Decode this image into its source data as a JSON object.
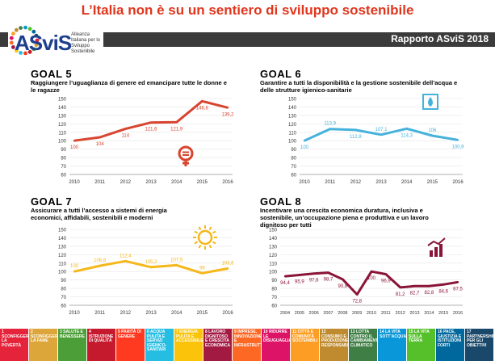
{
  "header": {
    "title": "L’Italia non è su un sentiero di sviluppo sostenibile",
    "logo_text": "ASviS",
    "logo_sub": "Alleanza Italiana per lo Sviluppo Sostenibile",
    "report_label": "Rapporto ASviS 2018"
  },
  "colors": {
    "goal5": "#d8442f",
    "goal6": "#45b2dc",
    "goal7": "#f5b71a",
    "goal8": "#8a1538"
  },
  "chart_data": [
    {
      "type": "line",
      "title": "GOAL 5",
      "subtitle": "Raggiungere l’uguaglianza di genere ed emancipare tutte le donne e le ragazze",
      "icon": "gender-equality-icon",
      "categories": [
        "2010",
        "2011",
        "2012",
        "2013",
        "2014",
        "2015",
        "2016"
      ],
      "values": [
        100,
        104,
        114,
        121.6,
        121.9,
        146.8,
        139.2
      ],
      "value_labels": [
        "100",
        "104",
        "114",
        "121,6",
        "121,9",
        "146,8",
        "139,2"
      ],
      "ylim": [
        60,
        150
      ],
      "yticks": [
        60,
        70,
        80,
        90,
        100,
        110,
        120,
        130,
        140,
        150
      ]
    },
    {
      "type": "line",
      "title": "GOAL 6",
      "subtitle": "Garantire a tutti la disponibilità e la gestione sostenibile dell’acqua e delle strutture igienico-sanitarie",
      "icon": "water-drop-icon",
      "categories": [
        "2010",
        "2011",
        "2012",
        "2013",
        "2014",
        "2015",
        "2016"
      ],
      "values": [
        100,
        113.9,
        112.8,
        107.1,
        114.3,
        106,
        100.9
      ],
      "value_labels": [
        "100",
        "113,9",
        "112,8",
        "107,1",
        "114,3",
        "106",
        "100,9"
      ],
      "ylim": [
        60,
        150
      ],
      "yticks": [
        60,
        70,
        80,
        90,
        100,
        110,
        120,
        130,
        140,
        150
      ]
    },
    {
      "type": "line",
      "title": "GOAL 7",
      "subtitle": "Assicurare a tutti l’accesso a sistemi di energia economici, affidabili, sostenibili e moderni",
      "icon": "sun-icon",
      "categories": [
        "2010",
        "2011",
        "2012",
        "2013",
        "2014",
        "2015",
        "2016"
      ],
      "values": [
        100,
        106.8,
        112.4,
        105.2,
        107.5,
        98,
        103.6
      ],
      "value_labels": [
        "100",
        "106,8",
        "112,4",
        "105,2",
        "107,5",
        "98",
        "103,6"
      ],
      "ylim": [
        60,
        150
      ],
      "yticks": [
        60,
        70,
        80,
        90,
        100,
        110,
        120,
        130,
        140,
        150
      ]
    },
    {
      "type": "line",
      "title": "GOAL 8",
      "subtitle": "Incentivare una crescita economica duratura, inclusiva e sostenibile, un’occupazione piena e produttiva e un lavoro dignitoso per tutti",
      "icon": "growth-chart-icon",
      "categories": [
        "2004",
        "2005",
        "2006",
        "2007",
        "2008",
        "2009",
        "2010",
        "2011",
        "2012",
        "2013",
        "2014",
        "2015",
        "2016"
      ],
      "values": [
        94.4,
        95.9,
        97.6,
        98.7,
        90.8,
        72.8,
        100,
        96.9,
        81.2,
        82.7,
        82.8,
        84.6,
        87.5
      ],
      "value_labels": [
        "94,4",
        "95,9",
        "97,6",
        "98,7",
        "90,8",
        "72,8",
        "100",
        "96,9",
        "81,2",
        "82,7",
        "82,8",
        "84,6",
        "87,5"
      ],
      "ylim": [
        60,
        150
      ],
      "yticks": [
        60,
        70,
        80,
        90,
        100,
        110,
        120,
        130,
        140,
        150
      ]
    }
  ],
  "sdg_bar": [
    {
      "label": "SCONFIGGERE LA POVERTÀ",
      "color": "#e5243b"
    },
    {
      "label": "SCONFIGGERE LA FAME",
      "color": "#dda63a"
    },
    {
      "label": "SALUTE E BENESSERE",
      "color": "#4c9f38"
    },
    {
      "label": "ISTRUZIONE DI QUALITÀ",
      "color": "#c5192d"
    },
    {
      "label": "PARITÀ DI GENERE",
      "color": "#ff3a21"
    },
    {
      "label": "ACQUA PULITA E SERVIZI IGIENICO-SANITARI",
      "color": "#26bde2"
    },
    {
      "label": "ENERGIA PULITA E ACCESSIBILE",
      "color": "#fcc30b"
    },
    {
      "label": "LAVORO DIGNITOSO E CRESCITA ECONOMICA",
      "color": "#a21942"
    },
    {
      "label": "IMPRESE, INNOVAZIONE E INFRASTRUTTURE",
      "color": "#fd6925"
    },
    {
      "label": "RIDURRE LE DISUGUAGLIANZE",
      "color": "#dd1367"
    },
    {
      "label": "CITTÀ E COMUNITÀ SOSTENIBILI",
      "color": "#fd9d24"
    },
    {
      "label": "CONSUMO E PRODUZIONE RESPONSABILI",
      "color": "#bf8b2e"
    },
    {
      "label": "LOTTA CONTRO IL CAMBIAMENTO CLIMATICO",
      "color": "#3f7e44"
    },
    {
      "label": "LA VITA SOTT’ACQUA",
      "color": "#0a97d9"
    },
    {
      "label": "LA VITA SULLA TERRA",
      "color": "#56c02b"
    },
    {
      "label": "PACE, GIUSTIZIA E ISTITUZIONI FORTI",
      "color": "#00689d"
    },
    {
      "label": "PARTNERSHIP PER GLI OBIETTIVI",
      "color": "#19486a"
    }
  ]
}
